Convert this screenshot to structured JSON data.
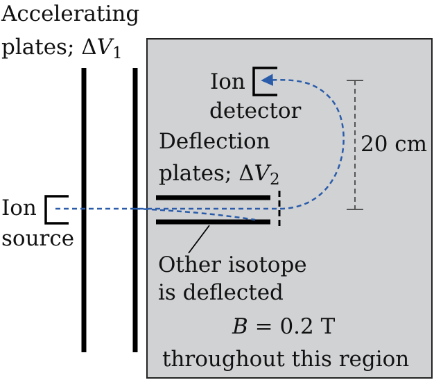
{
  "labels": {
    "accelerating_line1": "Accelerating",
    "accelerating_line2_text": "plates; ",
    "accelerating_delta": "Δ",
    "accelerating_var": "V",
    "accelerating_sub": "1",
    "ion_detector_line1": "Ion",
    "ion_detector_line2": "detector",
    "deflection_line1": "Deflection",
    "deflection_line2_text": "plates; ",
    "deflection_delta": "Δ",
    "deflection_var": "V",
    "deflection_sub": "2",
    "distance": "20 cm",
    "ion_source_line1": "Ion",
    "ion_source_line2": "source",
    "other_isotope_line1": "Other isotope",
    "other_isotope_line2": "is deflected",
    "field_var": "B",
    "field_value": " = 0.2 T",
    "field_region": "throughout this region"
  },
  "colors": {
    "region_fill": "#d1d2d4",
    "ion_path": "#2a5caa",
    "plates": "#000000",
    "dimension_line": "#555555"
  }
}
